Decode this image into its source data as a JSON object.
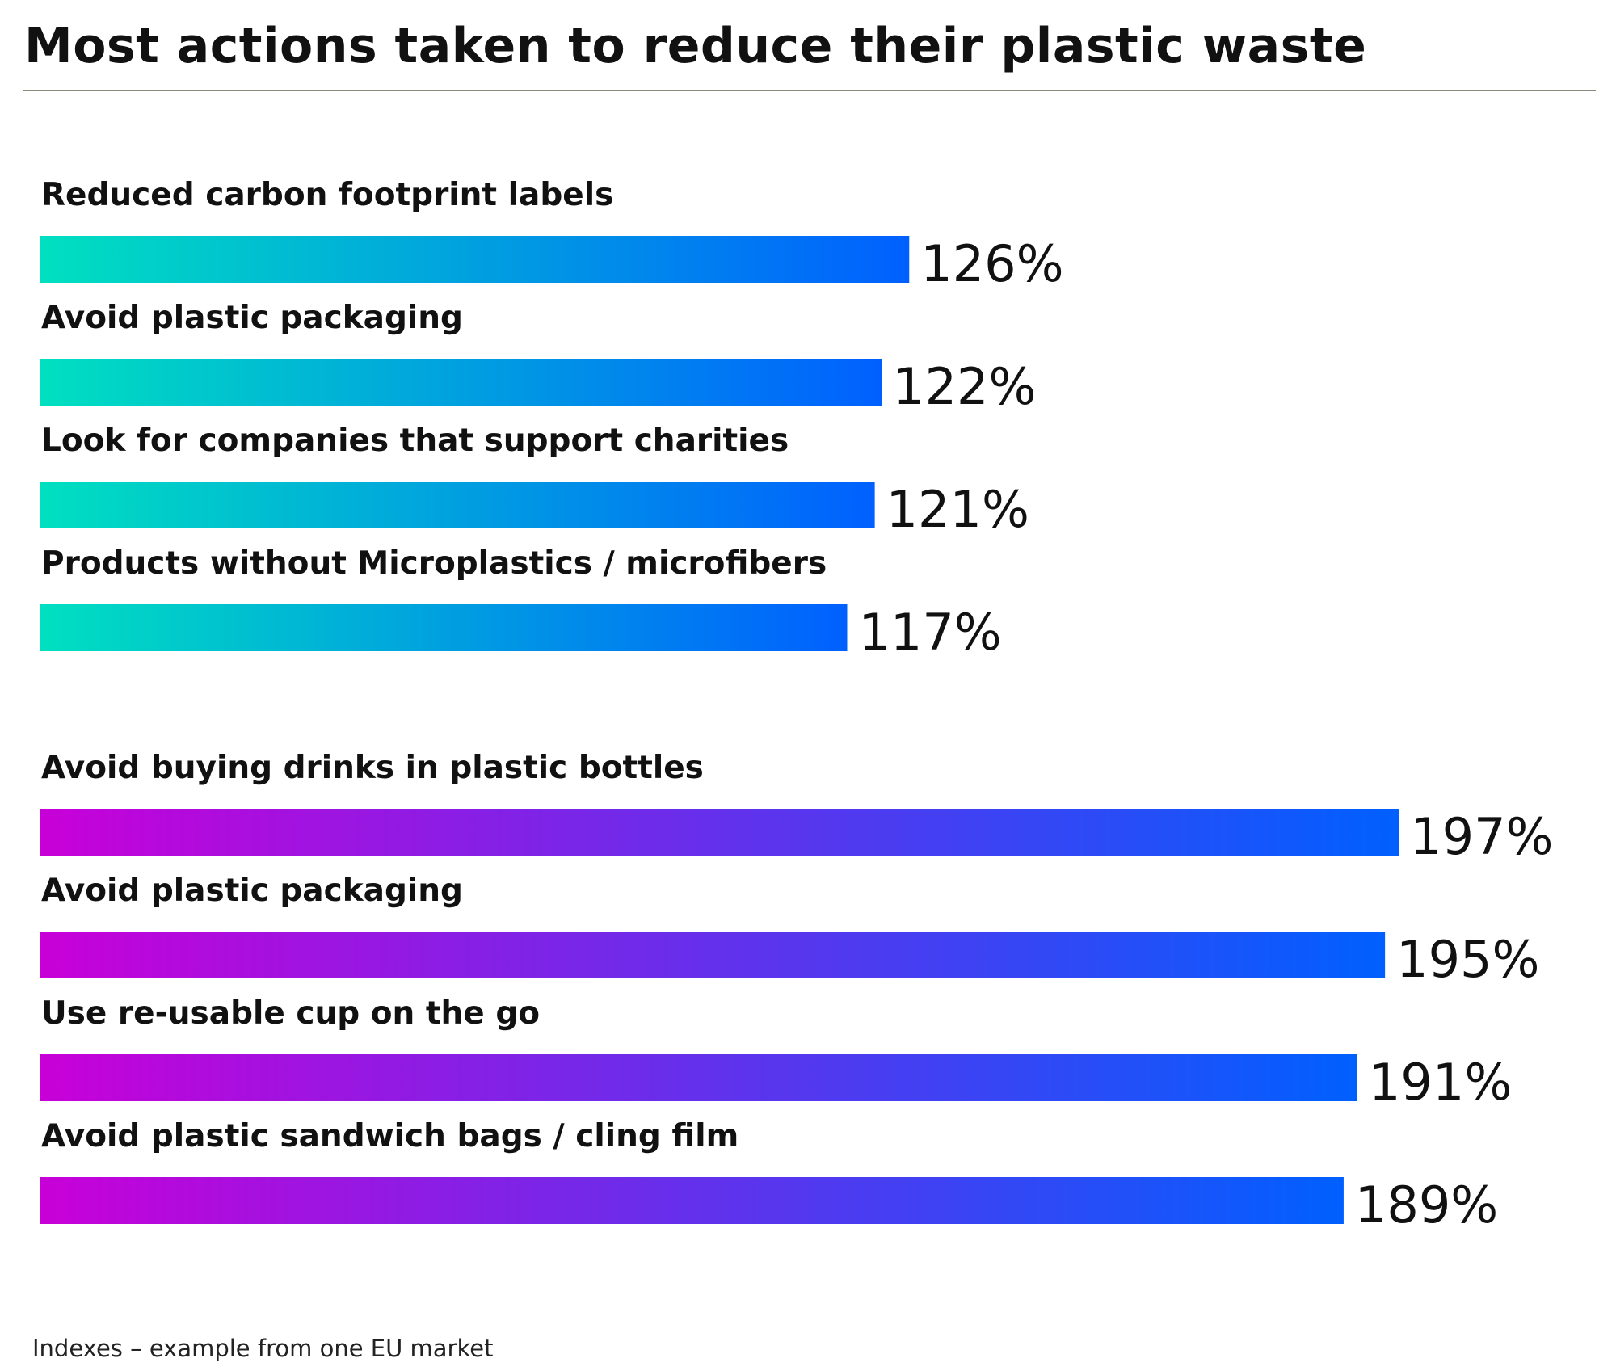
{
  "chart_data": {
    "type": "bar",
    "orientation": "horizontal",
    "title": "Most actions taken to reduce their plastic waste",
    "footnote": "Indexes – example from one EU market",
    "unit": "%",
    "groups": [
      {
        "gradient": [
          "#00e0c0",
          "#0060ff"
        ],
        "categories": [
          "Reduced carbon footprint labels",
          "Avoid plastic packaging",
          "Look for companies that support charities",
          "Products without Microplastics / microfibers"
        ],
        "values": [
          126,
          122,
          121,
          117
        ],
        "value_labels": [
          "126%",
          "122%",
          "121%",
          "117%"
        ]
      },
      {
        "gradient": [
          "#c800d8",
          "#0060ff"
        ],
        "categories": [
          "Avoid buying drinks in plastic bottles",
          "Avoid plastic packaging",
          "Use re-usable cup on the go",
          "Avoid plastic sandwich bags / cling film"
        ],
        "values": [
          197,
          195,
          191,
          189
        ],
        "value_labels": [
          "197%",
          "195%",
          "191%",
          "189%"
        ]
      }
    ]
  }
}
